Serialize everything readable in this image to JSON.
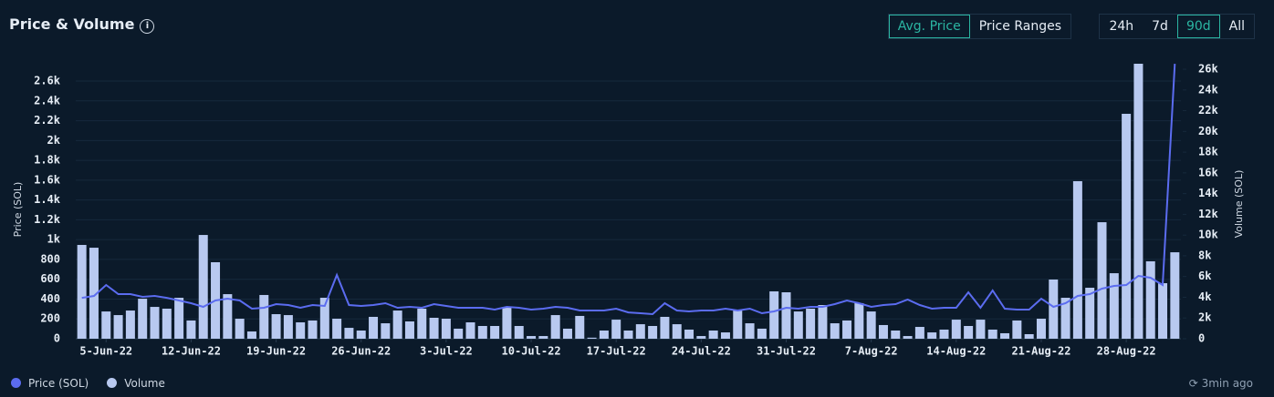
{
  "chart_data": {
    "type": "combo",
    "title": "Price & Volume",
    "y_label": "Price (SOL)",
    "y2_label": "Volume (SOL)",
    "metric_buttons": [
      "Avg. Price",
      "Price Ranges"
    ],
    "active_metric": 0,
    "range_buttons": [
      "24h",
      "7d",
      "90d",
      "All"
    ],
    "active_range": 2,
    "updated": "3min ago",
    "categories": [
      null,
      null,
      "5-Jun-22",
      null,
      null,
      null,
      null,
      null,
      null,
      "12-Jun-22",
      null,
      null,
      null,
      null,
      null,
      null,
      "19-Jun-22",
      null,
      null,
      null,
      null,
      null,
      null,
      "26-Jun-22",
      null,
      null,
      null,
      null,
      null,
      null,
      "3-Jul-22",
      null,
      null,
      null,
      null,
      null,
      null,
      "10-Jul-22",
      null,
      null,
      null,
      null,
      null,
      null,
      "17-Jul-22",
      null,
      null,
      null,
      null,
      null,
      null,
      "24-Jul-22",
      null,
      null,
      null,
      null,
      null,
      null,
      "31-Jul-22",
      null,
      null,
      null,
      null,
      null,
      null,
      "7-Aug-22",
      null,
      null,
      null,
      null,
      null,
      null,
      "14-Aug-22",
      null,
      null,
      null,
      null,
      null,
      null,
      "21-Aug-22",
      null,
      null,
      null,
      null,
      null,
      null,
      "28-Aug-22",
      null,
      null,
      null,
      null
    ],
    "series": [
      {
        "name": "Price (SOL)",
        "type": "line",
        "axis": "y",
        "color": "#5b6cf0",
        "values": [
          413,
          432,
          542,
          450,
          450,
          423,
          432,
          413,
          386,
          358,
          322,
          386,
          404,
          386,
          303,
          312,
          349,
          340,
          312,
          340,
          331,
          643,
          340,
          331,
          340,
          358,
          312,
          322,
          312,
          349,
          331,
          312,
          312,
          312,
          294,
          322,
          312,
          294,
          303,
          322,
          312,
          285,
          285,
          285,
          303,
          266,
          257,
          248,
          358,
          285,
          276,
          285,
          285,
          303,
          285,
          303,
          257,
          276,
          312,
          303,
          322,
          322,
          349,
          386,
          358,
          322,
          340,
          349,
          395,
          340,
          303,
          312,
          312,
          469,
          312,
          487,
          303,
          294,
          294,
          404,
          322,
          358,
          432,
          450,
          505,
          533,
          542,
          634,
          616,
          542,
          2774
        ]
      },
      {
        "name": "Volume",
        "type": "bar",
        "axis": "y2",
        "color": "#b8c9f0",
        "values": [
          9050,
          8780,
          2630,
          2280,
          2720,
          3860,
          3070,
          2900,
          3950,
          1760,
          10010,
          7380,
          4300,
          1930,
          700,
          4220,
          2370,
          2280,
          1580,
          1760,
          3950,
          1930,
          1050,
          790,
          2110,
          1490,
          2720,
          1670,
          2900,
          2020,
          1930,
          970,
          1580,
          1230,
          1230,
          3070,
          1230,
          260,
          260,
          2280,
          970,
          2200,
          100,
          790,
          1840,
          790,
          1400,
          1230,
          2110,
          1400,
          880,
          260,
          790,
          610,
          2810,
          1490,
          970,
          4570,
          4480,
          2630,
          2900,
          3250,
          1490,
          1760,
          3430,
          2630,
          1320,
          790,
          260,
          1140,
          610,
          880,
          1840,
          1230,
          1840,
          880,
          530,
          1760,
          440,
          1930,
          5710,
          3950,
          15200,
          4920,
          11240,
          6320,
          21700,
          26530,
          7470,
          5360,
          8340
        ]
      }
    ],
    "ylim": [
      0,
      2775
    ],
    "yticks": [
      0,
      200,
      400,
      600,
      800,
      {
        "value": 1000,
        "label": "1k"
      },
      {
        "value": 1200,
        "label": "1.2k"
      },
      {
        "value": 1400,
        "label": "1.4k"
      },
      {
        "value": 1600,
        "label": "1.6k"
      },
      {
        "value": 1800,
        "label": "1.8k"
      },
      {
        "value": 2000,
        "label": "2k"
      },
      {
        "value": 2200,
        "label": "2.2k"
      },
      {
        "value": 2400,
        "label": "2.4k"
      },
      {
        "value": 2600,
        "label": "2.6k"
      }
    ],
    "y2lim": [
      0,
      26530
    ],
    "y2ticks": [
      0,
      {
        "value": 2000,
        "label": "2k"
      },
      {
        "value": 4000,
        "label": "4k"
      },
      {
        "value": 6000,
        "label": "6k"
      },
      {
        "value": 8000,
        "label": "8k"
      },
      {
        "value": 10000,
        "label": "10k"
      },
      {
        "value": 12000,
        "label": "12k"
      },
      {
        "value": 14000,
        "label": "14k"
      },
      {
        "value": 16000,
        "label": "16k"
      },
      {
        "value": 18000,
        "label": "18k"
      },
      {
        "value": 20000,
        "label": "20k"
      },
      {
        "value": 22000,
        "label": "22k"
      },
      {
        "value": 24000,
        "label": "24k"
      },
      {
        "value": 26000,
        "label": "26k"
      }
    ],
    "grid": true
  }
}
